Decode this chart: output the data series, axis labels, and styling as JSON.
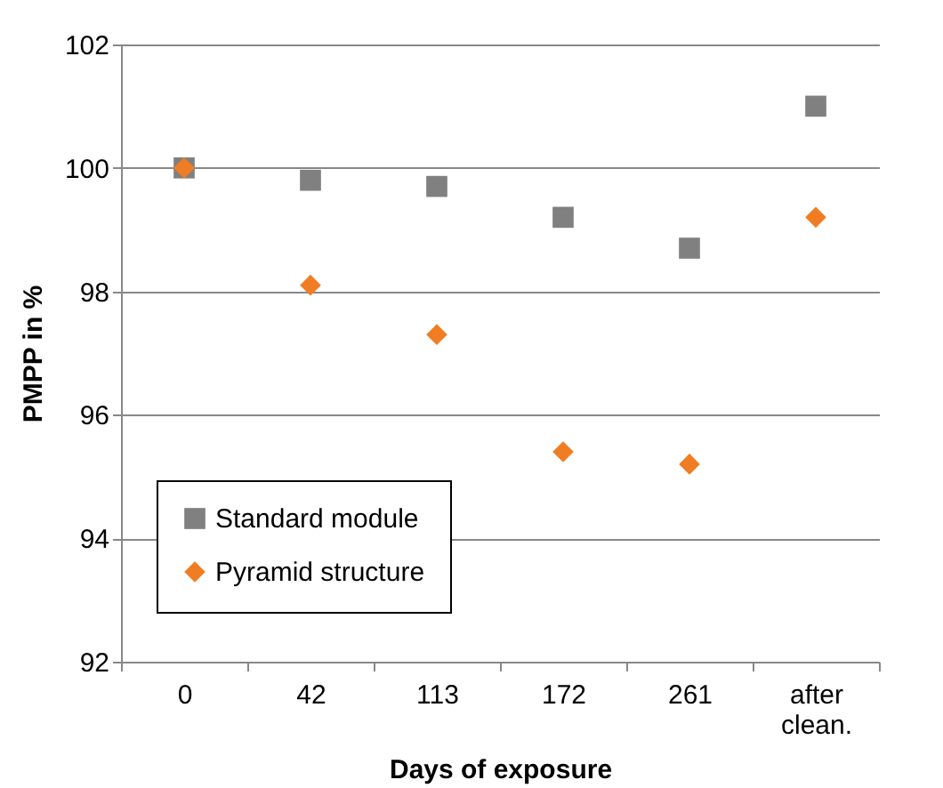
{
  "chart_data": {
    "type": "scatter",
    "xlabel": "Days of exposure",
    "ylabel": "PMPP in %",
    "categories": [
      "0",
      "42",
      "113",
      "172",
      "261",
      "after clean."
    ],
    "series": [
      {
        "name": "Standard module",
        "color": "#808080",
        "marker": "square",
        "values": [
          100.0,
          99.8,
          99.7,
          99.2,
          98.7,
          101.0
        ]
      },
      {
        "name": "Pyramid structure",
        "color": "#f07d24",
        "marker": "diamond",
        "values": [
          100.0,
          98.1,
          97.3,
          95.4,
          95.2,
          99.2
        ]
      }
    ],
    "ylim": [
      92,
      102
    ],
    "yticks": [
      92,
      94,
      96,
      98,
      100,
      102
    ],
    "grid": "y",
    "legend": "bottom left"
  }
}
